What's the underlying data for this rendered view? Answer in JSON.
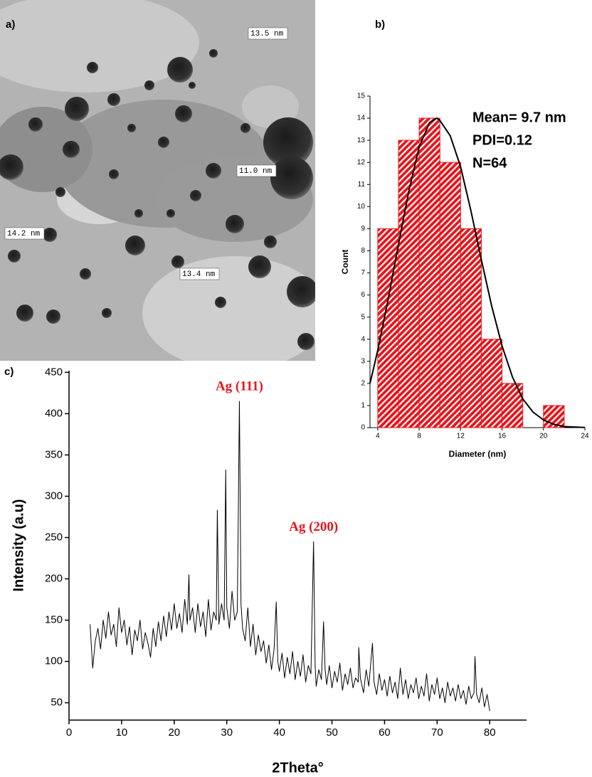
{
  "panel_labels": [
    "a)",
    "b)",
    "c)"
  ],
  "image": {
    "labels": [
      "13.5 nm",
      "11.0 nm",
      "14.2 nm",
      "13.4 nm"
    ]
  },
  "chart_data": [
    {
      "type": "histogram",
      "xlabel": "Diameter (nm)",
      "ylabel": "Count",
      "annotations": [
        "Mean= 9.7 nm",
        "PDI=0.12",
        "N=64"
      ],
      "bins": [
        4,
        6,
        8,
        10,
        12,
        14,
        16,
        18,
        20,
        22
      ],
      "values": [
        9,
        13,
        14,
        12,
        9,
        4,
        2,
        0,
        1
      ],
      "color": "#e8141b",
      "fit": {
        "color": "#000000",
        "x": [
          3.25,
          4,
          5,
          6,
          7,
          8,
          9,
          9.7,
          10,
          11,
          12,
          13,
          14,
          15,
          16,
          17,
          18,
          19,
          20,
          21,
          22,
          24
        ],
        "values": [
          2.0,
          3.5,
          5.8,
          8.3,
          10.7,
          12.7,
          13.8,
          14,
          13.9,
          13.2,
          11.8,
          9.8,
          7.6,
          5.5,
          3.7,
          2.3,
          1.3,
          0.7,
          0.35,
          0.15,
          0.05,
          0.01
        ]
      },
      "xlim": [
        3.25,
        24
      ],
      "xticks": [
        4,
        8,
        12,
        16,
        20,
        24
      ],
      "ylim": [
        0,
        15
      ],
      "yticks": [
        0,
        1,
        2,
        3,
        4,
        5,
        6,
        7,
        8,
        9,
        10,
        11,
        12,
        13,
        14,
        15
      ]
    },
    {
      "type": "line",
      "xlabel": "2Theta°",
      "ylabel": "Intensity (a.u)",
      "color": "#000000",
      "annotations": [
        {
          "text": "Ag (111)",
          "x": 32.4,
          "y": 432
        },
        {
          "text": "Ag (200)",
          "x": 46.5,
          "y": 262
        }
      ],
      "x": [
        4,
        4.5,
        5,
        5.5,
        6,
        6.5,
        7,
        7.5,
        8,
        8.5,
        9,
        9.5,
        10,
        10.5,
        11,
        11.5,
        12,
        12.5,
        13,
        13.5,
        14,
        14.5,
        15,
        15.5,
        16,
        16.5,
        17,
        17.5,
        18,
        18.5,
        19,
        19.5,
        20,
        20.5,
        21,
        21.5,
        22,
        22.5,
        22.8,
        23,
        23.5,
        24,
        24.5,
        25,
        25.5,
        26,
        26.5,
        27,
        27.5,
        28,
        28.2,
        28.5,
        29,
        29.5,
        29.8,
        30,
        30.5,
        31,
        31.5,
        32,
        32.4,
        32.7,
        33,
        33.5,
        34,
        34.5,
        35,
        35.5,
        36,
        36.5,
        37,
        37.5,
        38,
        38.5,
        39,
        39.4,
        39.7,
        40,
        40.5,
        41,
        41.5,
        42,
        42.5,
        43,
        43.5,
        44,
        44.5,
        45,
        45.5,
        46,
        46.5,
        46.8,
        47,
        47.5,
        48,
        48.4,
        48.7,
        49,
        49.5,
        50,
        50.5,
        51,
        51.5,
        52,
        52.5,
        53,
        53.5,
        54,
        54.5,
        55,
        55.1,
        55.4,
        56,
        56.5,
        57,
        57.7,
        58,
        58.5,
        59,
        59.5,
        60,
        60.5,
        61,
        61.5,
        62,
        62.5,
        63,
        63.5,
        64,
        64.5,
        65,
        65.5,
        66,
        66.5,
        67,
        67.5,
        68,
        68.5,
        69,
        69.5,
        70,
        70.5,
        71,
        71.5,
        72,
        72.5,
        73,
        73.5,
        74,
        74.5,
        75,
        75.5,
        76,
        76.5,
        77,
        77.2,
        77.5,
        78,
        78.5,
        79,
        79.5,
        80
      ],
      "values": [
        145,
        92,
        125,
        140,
        115,
        150,
        128,
        160,
        132,
        145,
        118,
        165,
        135,
        150,
        120,
        142,
        108,
        138,
        125,
        150,
        115,
        135,
        122,
        105,
        140,
        118,
        148,
        125,
        155,
        130,
        160,
        138,
        170,
        140,
        158,
        135,
        175,
        145,
        205,
        150,
        165,
        135,
        170,
        142,
        160,
        130,
        175,
        138,
        160,
        150,
        283,
        145,
        170,
        150,
        332,
        165,
        140,
        185,
        150,
        160,
        415,
        170,
        140,
        125,
        165,
        118,
        145,
        108,
        132,
        112,
        125,
        98,
        120,
        90,
        115,
        172,
        100,
        88,
        110,
        80,
        105,
        85,
        112,
        78,
        100,
        82,
        108,
        75,
        95,
        85,
        245,
        95,
        70,
        90,
        78,
        148,
        90,
        72,
        95,
        68,
        88,
        75,
        98,
        65,
        85,
        72,
        92,
        68,
        80,
        75,
        117,
        80,
        62,
        90,
        70,
        122,
        75,
        60,
        85,
        65,
        78,
        58,
        82,
        62,
        75,
        55,
        92,
        60,
        78,
        55,
        72,
        62,
        80,
        55,
        70,
        58,
        85,
        52,
        72,
        60,
        80,
        55,
        68,
        50,
        75,
        58,
        68,
        52,
        72,
        55,
        65,
        48,
        70,
        55,
        62,
        106,
        60,
        50,
        68,
        45,
        60,
        40
      ],
      "xlim": [
        0,
        87
      ],
      "xticks": [
        0,
        10,
        20,
        30,
        40,
        50,
        60,
        70,
        80
      ],
      "ylim": [
        29,
        452
      ],
      "yticks": [
        50,
        100,
        150,
        200,
        250,
        300,
        350,
        400,
        450
      ]
    }
  ]
}
